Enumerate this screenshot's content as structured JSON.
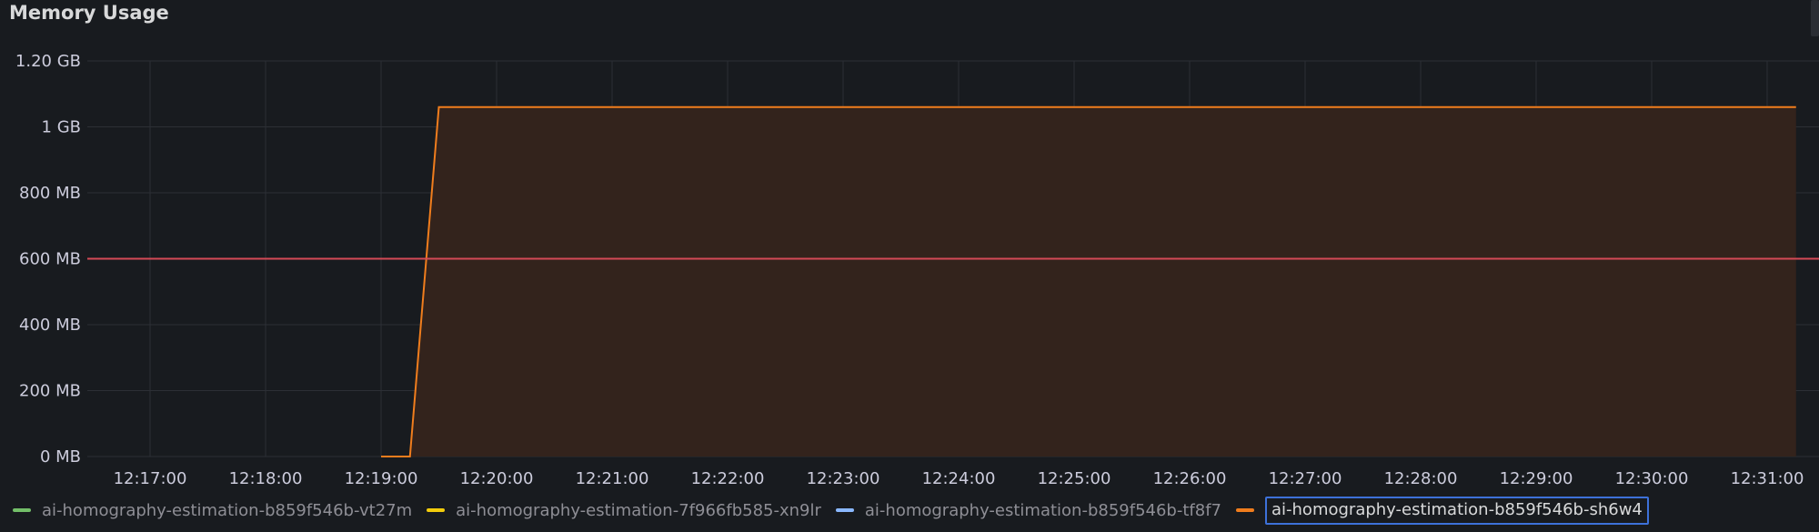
{
  "panel": {
    "title": "Memory Usage"
  },
  "colors": {
    "background": "#181b1f",
    "grid": "#2c2f35",
    "threshold": "#d44a56",
    "orange_series": "#f07d1d",
    "orange_fill": "#33231c",
    "green": "#73bf69",
    "yellow": "#f2cc0c",
    "blue": "#8ab8ff",
    "focus_border": "#3d71d9"
  },
  "chart_data": {
    "type": "area",
    "title": "Memory Usage",
    "y_unit": "MB",
    "ylim": [
      0,
      1200
    ],
    "y_ticks": [
      {
        "value": 1200,
        "label": "1.20 GB"
      },
      {
        "value": 1000,
        "label": "1 GB"
      },
      {
        "value": 800,
        "label": "800 MB"
      },
      {
        "value": 600,
        "label": "600 MB"
      },
      {
        "value": 400,
        "label": "400 MB"
      },
      {
        "value": 200,
        "label": "200 MB"
      },
      {
        "value": 0,
        "label": "0 MB"
      }
    ],
    "x_ticks": [
      "12:17:00",
      "12:18:00",
      "12:19:00",
      "12:20:00",
      "12:21:00",
      "12:22:00",
      "12:23:00",
      "12:24:00",
      "12:25:00",
      "12:26:00",
      "12:27:00",
      "12:28:00",
      "12:29:00",
      "12:30:00",
      "12:31:00"
    ],
    "grid": true,
    "legend_position": "bottom",
    "threshold": {
      "value": 600,
      "color": "#d44a56"
    },
    "series": [
      {
        "name": "ai-homography-estimation-b859f546b-sh6w4",
        "color": "#f07d1d",
        "fill": true,
        "points": [
          {
            "t": "12:19:00",
            "y": 0
          },
          {
            "t": "12:19:15",
            "y": 0
          },
          {
            "t": "12:19:30",
            "y": 1060
          },
          {
            "t": "12:31:15",
            "y": 1060
          }
        ]
      }
    ]
  },
  "legend": [
    {
      "name": "ai-homography-estimation-b859f546b-vt27m",
      "color": "#73bf69",
      "active": false
    },
    {
      "name": "ai-homography-estimation-7f966fb585-xn9lr",
      "color": "#f2cc0c",
      "active": false
    },
    {
      "name": "ai-homography-estimation-b859f546b-tf8f7",
      "color": "#8ab8ff",
      "active": false
    },
    {
      "name": "ai-homography-estimation-b859f546b-sh6w4",
      "color": "#f07d1d",
      "active": true
    }
  ]
}
